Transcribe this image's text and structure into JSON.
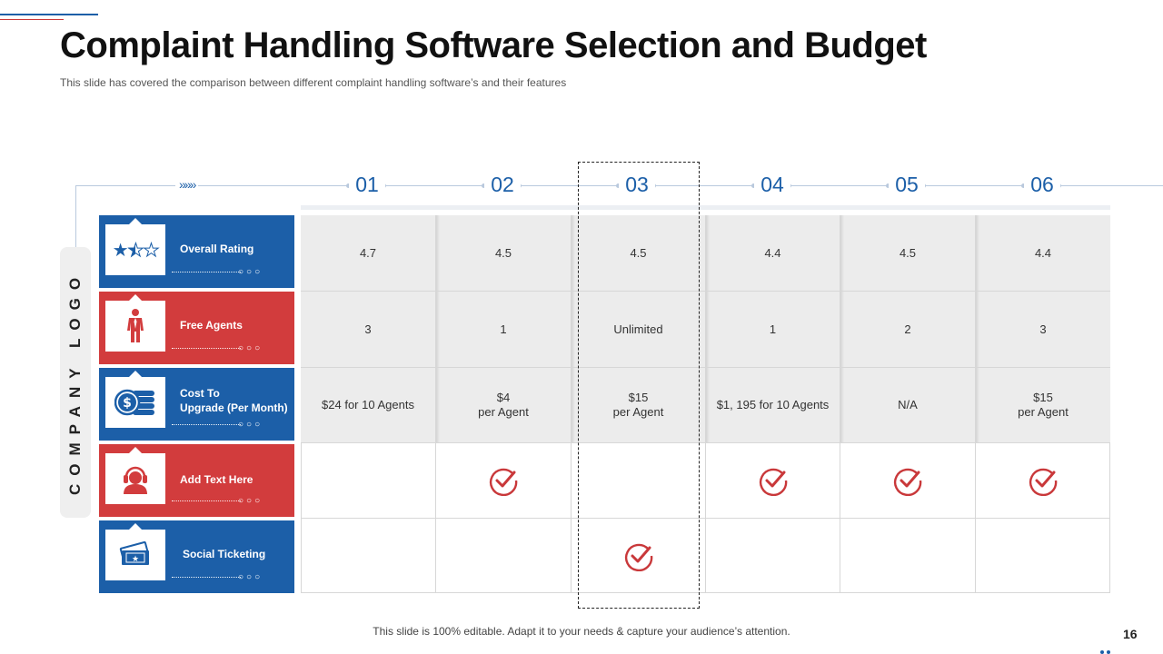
{
  "title": "Complaint Handling Software Selection and Budget",
  "subtitle": "This slide has covered  the comparison between different complaint handling software’s and their features",
  "arrows": "»»»",
  "columns": [
    "01",
    "02",
    "03",
    "04",
    "05",
    "06"
  ],
  "company_logo": "COMPANY LOGO",
  "categories": [
    {
      "label_1": "Overall Rating",
      "label_2": "",
      "icon": "rating-stars-icon",
      "color": "#1c5fa8"
    },
    {
      "label_1": "Free Agents",
      "label_2": "",
      "icon": "agent-person-icon",
      "color": "#d23c3d"
    },
    {
      "label_1": "Cost To",
      "label_2": "Upgrade (Per Month)",
      "icon": "coins-dollar-icon",
      "color": "#1c5fa8"
    },
    {
      "label_1": "Add Text Here",
      "label_2": "",
      "icon": "headset-support-icon",
      "color": "#d23c3d"
    },
    {
      "label_1": "Social Ticketing",
      "label_2": "",
      "icon": "ticket-icon",
      "color": "#1c5fa8"
    }
  ],
  "rings": "○○○",
  "rows": {
    "rating": [
      "4.7",
      "4.5",
      "4.5",
      "4.4",
      "4.5",
      "4.4"
    ],
    "free_agents": [
      "3",
      "1",
      "Unlimited",
      "1",
      "2",
      "3"
    ],
    "cost": [
      {
        "line1": "$24 for 10 Agents",
        "line2": ""
      },
      {
        "line1": "$4",
        "line2": "per Agent"
      },
      {
        "line1": "$15",
        "line2": "per Agent"
      },
      {
        "line1": "$1, 195 for 10 Agents",
        "line2": ""
      },
      {
        "line1": "N/A",
        "line2": ""
      },
      {
        "line1": "$15",
        "line2": "per Agent"
      }
    ],
    "add_text_checks": [
      false,
      true,
      false,
      true,
      true,
      true
    ],
    "social_ticketing_checks": [
      false,
      false,
      true,
      false,
      false,
      false
    ]
  },
  "footer": "This slide is 100% editable. Adapt it to your needs & capture your audience’s attention.",
  "page_number": "16",
  "colors": {
    "blue": "#1c5fa8",
    "red": "#d23c3d",
    "check": "#c9383a"
  }
}
